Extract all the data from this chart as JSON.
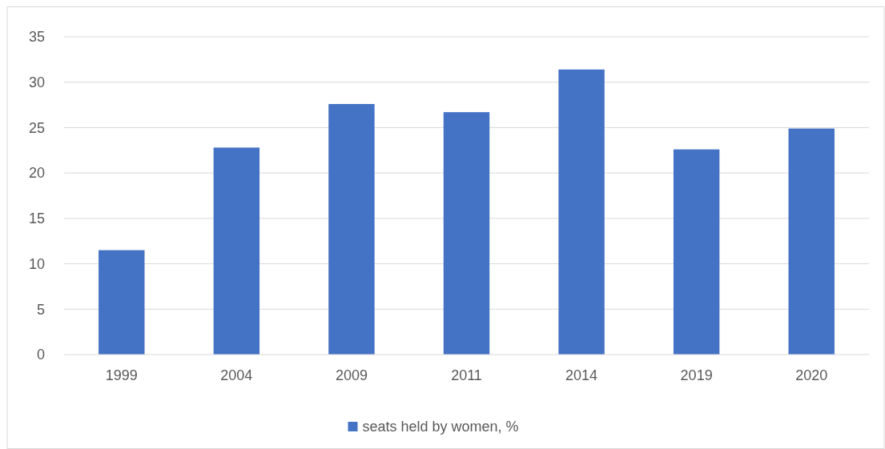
{
  "chart_data": {
    "type": "bar",
    "categories": [
      "1999",
      "2004",
      "2009",
      "2011",
      "2014",
      "2019",
      "2020"
    ],
    "series": [
      {
        "name": "seats held by women, %",
        "color": "#4472c4",
        "values": [
          11.5,
          22.8,
          27.6,
          26.7,
          31.4,
          22.6,
          24.9
        ]
      }
    ],
    "ylim": [
      0,
      35
    ],
    "yticks": [
      0,
      5,
      10,
      15,
      20,
      25,
      30,
      35
    ],
    "grid": "y",
    "legend": "bottom"
  }
}
